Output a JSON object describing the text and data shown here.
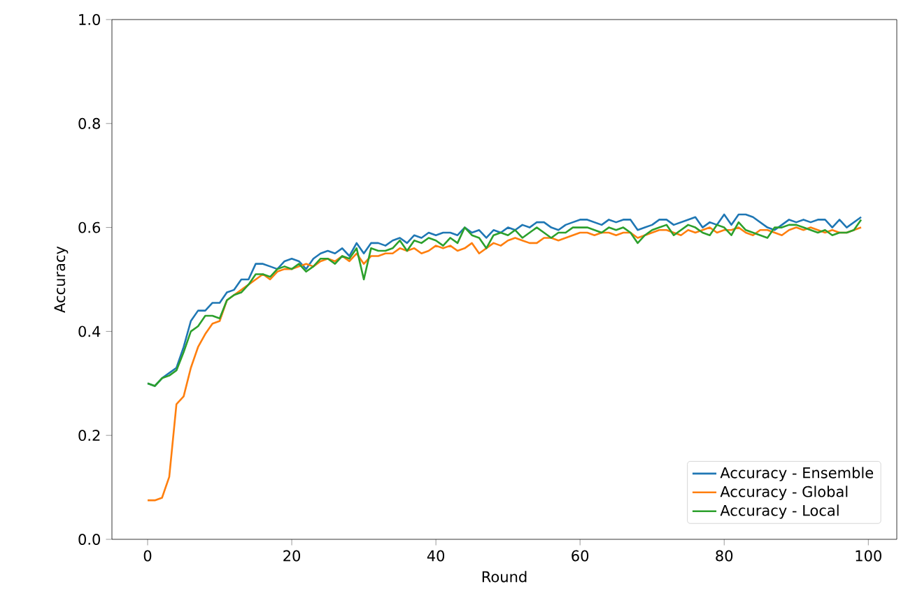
{
  "chart_data": {
    "type": "line",
    "x": [
      0,
      1,
      2,
      3,
      4,
      5,
      6,
      7,
      8,
      9,
      10,
      11,
      12,
      13,
      14,
      15,
      16,
      17,
      18,
      19,
      20,
      21,
      22,
      23,
      24,
      25,
      26,
      27,
      28,
      29,
      30,
      31,
      32,
      33,
      34,
      35,
      36,
      37,
      38,
      39,
      40,
      41,
      42,
      43,
      44,
      45,
      46,
      47,
      48,
      49,
      50,
      51,
      52,
      53,
      54,
      55,
      56,
      57,
      58,
      59,
      60,
      61,
      62,
      63,
      64,
      65,
      66,
      67,
      68,
      69,
      70,
      71,
      72,
      73,
      74,
      75,
      76,
      77,
      78,
      79,
      80,
      81,
      82,
      83,
      84,
      85,
      86,
      87,
      88,
      89,
      90,
      91,
      92,
      93,
      94,
      95,
      96,
      97,
      98,
      99
    ],
    "xlabel": "Round",
    "ylabel": "Accuracy",
    "xlim": [
      -4.95,
      103.95
    ],
    "ylim": [
      0,
      1
    ],
    "xticks": [
      0,
      20,
      40,
      60,
      80,
      100
    ],
    "yticks": [
      {
        "value": 0,
        "label": "0.0"
      },
      {
        "value": 0.2,
        "label": "0.2"
      },
      {
        "value": 0.4,
        "label": "0.4"
      },
      {
        "value": 0.6,
        "label": "0.6"
      },
      {
        "value": 0.8,
        "label": "0.8"
      },
      {
        "value": 1,
        "label": "1.0"
      }
    ],
    "legend": "bottom right",
    "grid": false,
    "series": [
      {
        "name": "Accuracy - Ensemble",
        "color": "#1f77b4",
        "values": [
          0.3,
          0.295,
          0.31,
          0.32,
          0.33,
          0.37,
          0.42,
          0.44,
          0.44,
          0.455,
          0.455,
          0.475,
          0.48,
          0.5,
          0.5,
          0.53,
          0.53,
          0.525,
          0.52,
          0.535,
          0.54,
          0.535,
          0.52,
          0.54,
          0.55,
          0.555,
          0.55,
          0.56,
          0.545,
          0.57,
          0.55,
          0.57,
          0.57,
          0.565,
          0.575,
          0.58,
          0.57,
          0.585,
          0.58,
          0.59,
          0.585,
          0.59,
          0.59,
          0.585,
          0.6,
          0.59,
          0.595,
          0.58,
          0.595,
          0.59,
          0.6,
          0.595,
          0.605,
          0.6,
          0.61,
          0.61,
          0.6,
          0.595,
          0.605,
          0.61,
          0.615,
          0.615,
          0.61,
          0.605,
          0.615,
          0.61,
          0.615,
          0.615,
          0.595,
          0.6,
          0.605,
          0.615,
          0.615,
          0.605,
          0.61,
          0.615,
          0.62,
          0.6,
          0.61,
          0.605,
          0.625,
          0.605,
          0.625,
          0.625,
          0.62,
          0.61,
          0.6,
          0.595,
          0.605,
          0.615,
          0.61,
          0.615,
          0.61,
          0.615,
          0.615,
          0.6,
          0.615,
          0.6,
          0.61,
          0.62
        ]
      },
      {
        "name": "Accuracy - Global",
        "color": "#ff7f0e",
        "values": [
          0.075,
          0.075,
          0.08,
          0.12,
          0.26,
          0.275,
          0.33,
          0.37,
          0.395,
          0.415,
          0.42,
          0.46,
          0.47,
          0.48,
          0.49,
          0.5,
          0.51,
          0.5,
          0.515,
          0.52,
          0.52,
          0.525,
          0.53,
          0.525,
          0.535,
          0.54,
          0.535,
          0.545,
          0.535,
          0.55,
          0.53,
          0.545,
          0.545,
          0.55,
          0.55,
          0.56,
          0.555,
          0.56,
          0.55,
          0.555,
          0.565,
          0.56,
          0.565,
          0.555,
          0.56,
          0.57,
          0.55,
          0.56,
          0.57,
          0.565,
          0.575,
          0.58,
          0.575,
          0.57,
          0.57,
          0.58,
          0.58,
          0.575,
          0.58,
          0.585,
          0.59,
          0.59,
          0.585,
          0.59,
          0.59,
          0.585,
          0.59,
          0.59,
          0.58,
          0.585,
          0.59,
          0.595,
          0.595,
          0.59,
          0.585,
          0.595,
          0.59,
          0.595,
          0.6,
          0.59,
          0.595,
          0.595,
          0.6,
          0.59,
          0.585,
          0.595,
          0.595,
          0.59,
          0.585,
          0.595,
          0.6,
          0.595,
          0.6,
          0.595,
          0.59,
          0.595,
          0.59,
          0.59,
          0.595,
          0.6
        ]
      },
      {
        "name": "Accuracy - Local",
        "color": "#2ca02c",
        "values": [
          0.3,
          0.295,
          0.31,
          0.315,
          0.325,
          0.36,
          0.4,
          0.41,
          0.43,
          0.43,
          0.425,
          0.46,
          0.47,
          0.475,
          0.49,
          0.51,
          0.51,
          0.505,
          0.52,
          0.525,
          0.52,
          0.53,
          0.515,
          0.525,
          0.54,
          0.54,
          0.53,
          0.545,
          0.54,
          0.56,
          0.5,
          0.56,
          0.555,
          0.555,
          0.56,
          0.575,
          0.555,
          0.575,
          0.57,
          0.58,
          0.575,
          0.565,
          0.58,
          0.57,
          0.6,
          0.585,
          0.58,
          0.56,
          0.585,
          0.59,
          0.585,
          0.595,
          0.58,
          0.59,
          0.6,
          0.59,
          0.58,
          0.59,
          0.59,
          0.6,
          0.6,
          0.6,
          0.595,
          0.59,
          0.6,
          0.595,
          0.6,
          0.59,
          0.57,
          0.585,
          0.595,
          0.6,
          0.605,
          0.585,
          0.595,
          0.605,
          0.6,
          0.59,
          0.585,
          0.605,
          0.6,
          0.585,
          0.61,
          0.595,
          0.59,
          0.585,
          0.58,
          0.6,
          0.6,
          0.605,
          0.605,
          0.6,
          0.595,
          0.59,
          0.595,
          0.585,
          0.59,
          0.59,
          0.595,
          0.615
        ]
      }
    ]
  }
}
